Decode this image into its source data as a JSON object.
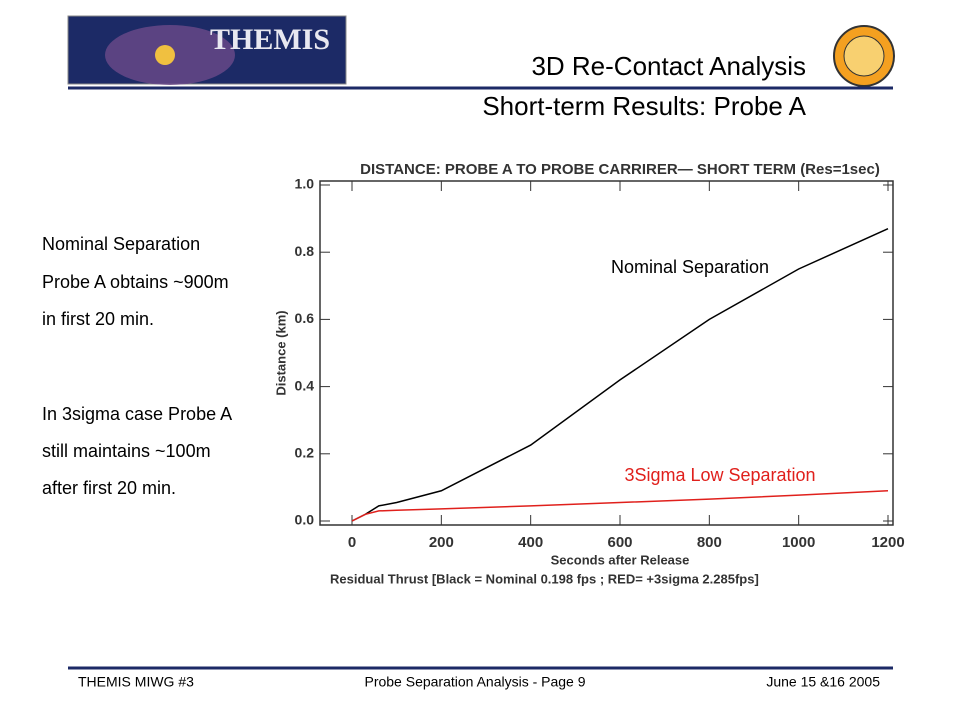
{
  "header": {
    "logo_text": "THEMIS",
    "title": "3D Re-Contact Analysis",
    "subtitle": "Short-term Results: Probe A"
  },
  "notes": [
    "Nominal Separation",
    "Probe A obtains ~900m",
    "in first 20 min.",
    "In 3sigma case Probe A",
    "still maintains ~100m",
    "after first 20 min."
  ],
  "chart_data": {
    "type": "line",
    "title": "DISTANCE: PROBE A TO PROBE CARRIRER— SHORT TERM (Res=1sec)",
    "x_label": "Seconds after Release",
    "y_label": "Distance (km)",
    "footnote": "Residual Thrust [Black = Nominal 0.198 fps ; RED= +3sigma 2.285fps]",
    "x": [
      0,
      30,
      60,
      100,
      200,
      400,
      600,
      800,
      1000,
      1200
    ],
    "series": [
      {
        "name": "Nominal Separation",
        "color": "#000000",
        "values": [
          0,
          0.02,
          0.045,
          0.055,
          0.09,
          0.226,
          0.42,
          0.6,
          0.75,
          0.87
        ]
      },
      {
        "name": "3Sigma Low Separation",
        "color": "#e0201c",
        "values": [
          0,
          0.02,
          0.03,
          0.032,
          0.036,
          0.045,
          0.055,
          0.065,
          0.077,
          0.09
        ]
      }
    ],
    "xlim": [
      0,
      1200
    ],
    "xticks": [
      0,
      200,
      400,
      600,
      800,
      1000,
      1200
    ],
    "ylim": [
      0,
      1
    ],
    "yticks": [
      {
        "value": 0,
        "label": "0.0"
      },
      0.2,
      0.4,
      0.6,
      0.8,
      {
        "value": 1,
        "label": "1.0"
      }
    ]
  },
  "footer": {
    "left": "THEMIS MIWG #3",
    "center": "Probe Separation Analysis - Page 9",
    "right": "June 15 &16 2005"
  }
}
